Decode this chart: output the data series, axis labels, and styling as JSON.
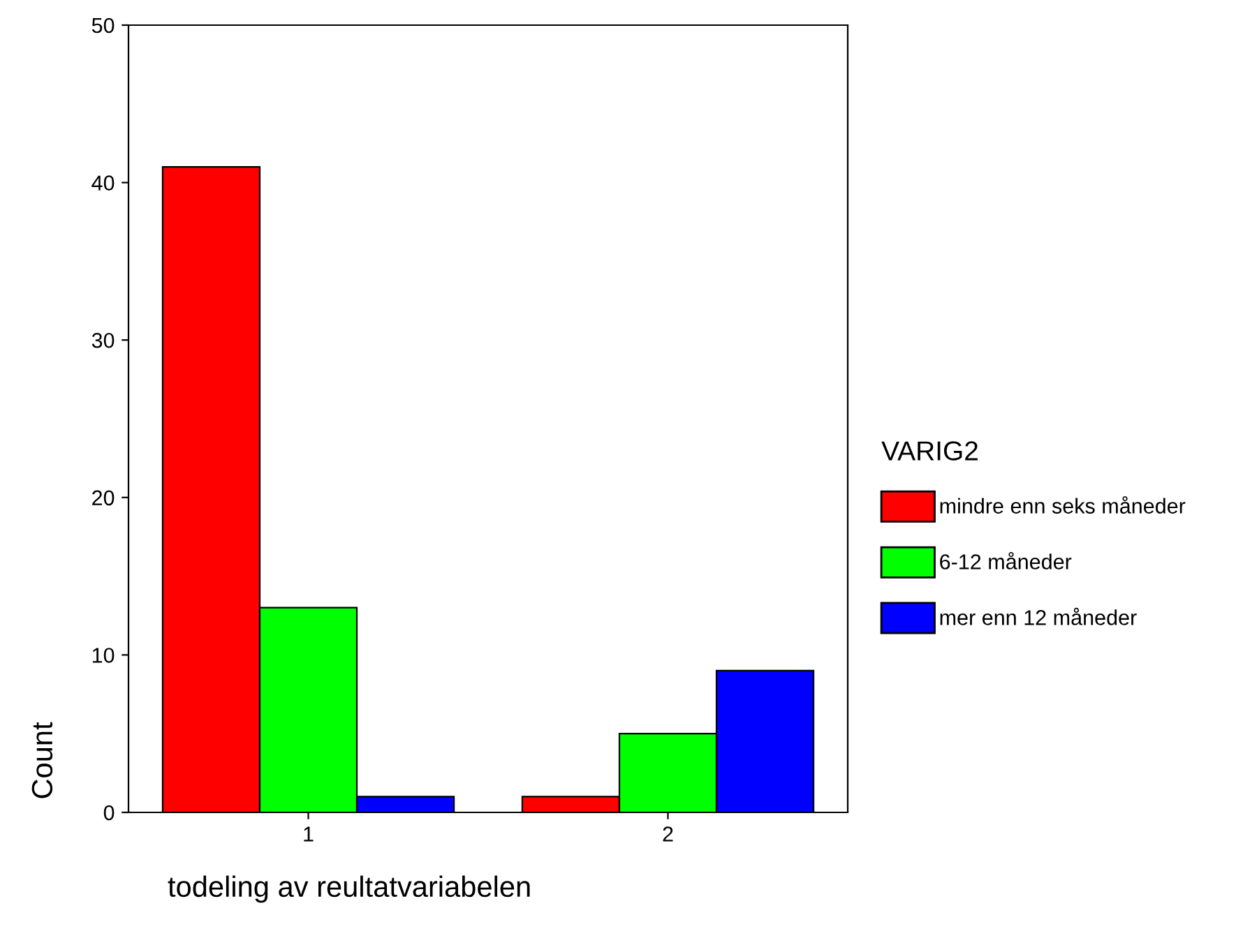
{
  "chart_data": {
    "type": "bar",
    "xlabel": "todeling av reultatvariabelen",
    "ylabel": "Count",
    "legend_title": "VARIG2",
    "categories": [
      "1",
      "2"
    ],
    "series": [
      {
        "name": "mindre enn seks måneder",
        "color": "#ff0000",
        "values": [
          41,
          1
        ]
      },
      {
        "name": "6-12 måneder",
        "color": "#00ff00",
        "values": [
          13,
          5
        ]
      },
      {
        "name": "mer enn 12 måneder",
        "color": "#0000ff",
        "values": [
          1,
          9
        ]
      }
    ],
    "ylim": [
      0,
      50
    ],
    "yticks": [
      0,
      10,
      20,
      30,
      40,
      50
    ],
    "grid": false,
    "legend": "right"
  }
}
